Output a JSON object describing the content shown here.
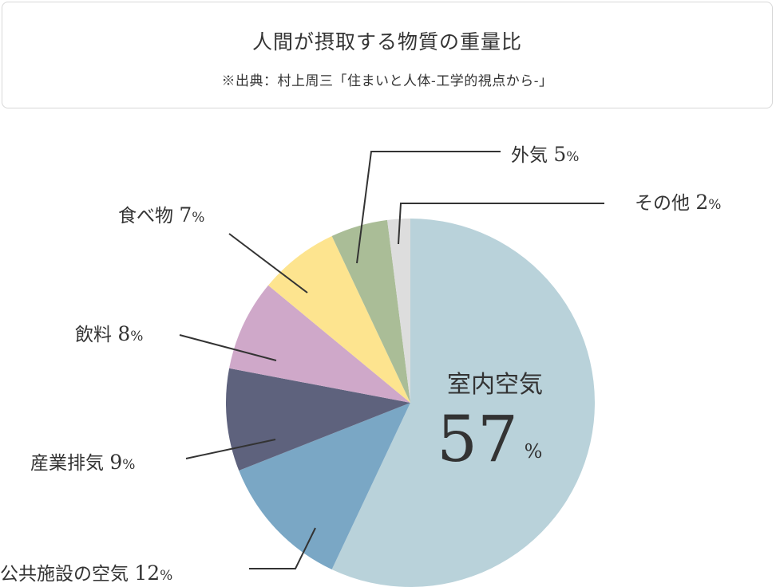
{
  "header": {
    "title": "人間が摂取する物質の重量比",
    "source": "※出典：村上周三「住まいと人体-工学的視点から-」"
  },
  "chart_data": {
    "type": "pie",
    "title": "人間が摂取する物質の重量比",
    "subtitle": "※出典：村上周三「住まいと人体-工学的視点から-」",
    "unit": "%",
    "slices": [
      {
        "name": "室内空気",
        "value": 57,
        "color": "#b9d2da"
      },
      {
        "name": "公共施設の空気",
        "value": 12,
        "color": "#7aa7c5"
      },
      {
        "name": "産業排気",
        "value": 9,
        "color": "#5e627d"
      },
      {
        "name": "飲料",
        "value": 8,
        "color": "#cfa8c9"
      },
      {
        "name": "食べ物",
        "value": 7,
        "color": "#fde48f"
      },
      {
        "name": "外気",
        "value": 5,
        "color": "#aabd97"
      },
      {
        "name": "その他",
        "value": 2,
        "color": "#dddddd"
      }
    ]
  }
}
